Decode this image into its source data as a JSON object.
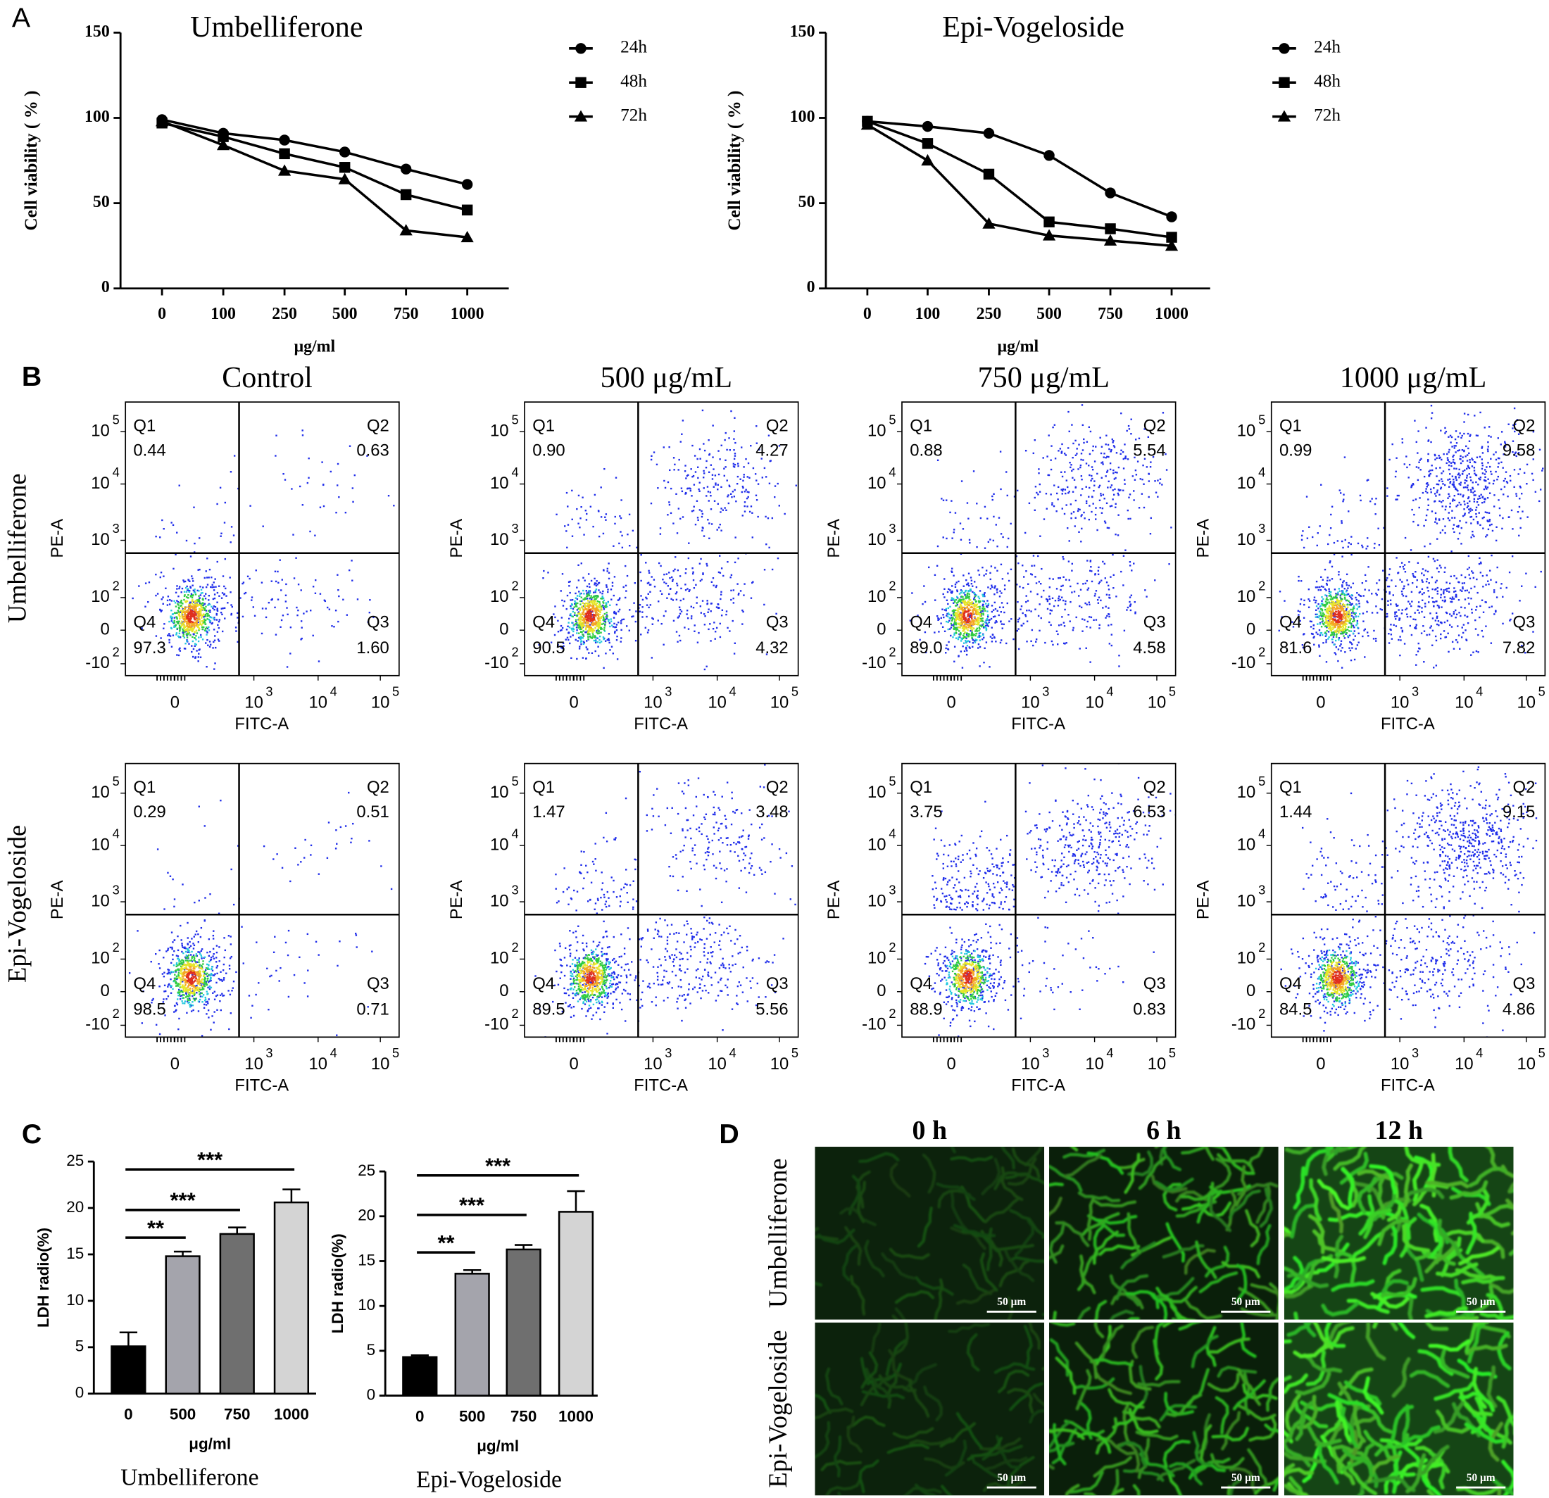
{
  "panel_labels": [
    "A",
    "B",
    "C",
    "D"
  ],
  "chart_data": [
    {
      "type": "line",
      "title": "Umbelliferone",
      "x_label": "μg/ml",
      "y_label": "Cell viability ( %  )",
      "categories": [
        "0",
        "100",
        "250",
        "500",
        "750",
        "1000"
      ],
      "ylim": [
        0,
        150
      ],
      "yticks": [
        0,
        50,
        100,
        150
      ],
      "series": [
        {
          "name": "24h",
          "color": "#000000",
          "marker": "circle",
          "values": [
            99,
            91,
            87,
            80,
            70,
            61
          ]
        },
        {
          "name": "48h",
          "color": "#000000",
          "marker": "square",
          "values": [
            97,
            89,
            79,
            71,
            55,
            46
          ]
        },
        {
          "name": "72h",
          "color": "#000000",
          "marker": "triangle",
          "values": [
            98,
            84,
            69,
            64,
            34,
            30
          ]
        }
      ]
    },
    {
      "type": "line",
      "title": "Epi-Vogeloside",
      "x_label": "μg/ml",
      "y_label": "Cell viability ( %  )",
      "categories": [
        "0",
        "100",
        "250",
        "500",
        "750",
        "1000"
      ],
      "ylim": [
        0,
        150
      ],
      "yticks": [
        0,
        50,
        100,
        150
      ],
      "series": [
        {
          "name": "24h",
          "color": "#000000",
          "marker": "circle",
          "values": [
            98,
            95,
            91,
            78,
            56,
            42
          ]
        },
        {
          "name": "48h",
          "color": "#000000",
          "marker": "square",
          "values": [
            98,
            85,
            67,
            39,
            35,
            30
          ]
        },
        {
          "name": "72h",
          "color": "#000000",
          "marker": "triangle",
          "values": [
            96,
            75,
            38,
            31,
            28,
            25
          ]
        }
      ]
    },
    {
      "type": "bar",
      "title": "Umbelliferone",
      "x_label": "μg/ml",
      "y_label": "LDH radio(%)",
      "categories": [
        "0",
        "500",
        "750",
        "1000"
      ],
      "values": [
        5.1,
        14.8,
        17.2,
        20.6
      ],
      "errors": [
        1.5,
        0.5,
        0.7,
        1.4
      ],
      "colors": [
        "#000000",
        "#a4a4ac",
        "#6f6f6f",
        "#d4d4d4"
      ],
      "ylim": [
        0,
        25
      ],
      "yticks": [
        0,
        5,
        10,
        15,
        20,
        25
      ],
      "annotations": [
        {
          "text": "**",
          "from": 0,
          "to": 1
        },
        {
          "text": "***",
          "from": 0,
          "to": 2
        },
        {
          "text": "***",
          "from": 0,
          "to": 3
        }
      ]
    },
    {
      "type": "bar",
      "title": "Epi-Vogeloside",
      "x_label": "μg/ml",
      "y_label": "LDH radio(%)",
      "categories": [
        "0",
        "500",
        "750",
        "1000"
      ],
      "values": [
        4.3,
        13.6,
        16.3,
        20.5
      ],
      "errors": [
        0.2,
        0.4,
        0.5,
        2.3
      ],
      "colors": [
        "#000000",
        "#a4a4ac",
        "#6f6f6f",
        "#d4d4d4"
      ],
      "ylim": [
        0,
        25
      ],
      "yticks": [
        0,
        5,
        10,
        15,
        20,
        25
      ],
      "annotations": [
        {
          "text": "**",
          "from": 0,
          "to": 1
        },
        {
          "text": "***",
          "from": 0,
          "to": 2
        },
        {
          "text": "***",
          "from": 0,
          "to": 3
        }
      ]
    }
  ],
  "flow": {
    "column_titles": [
      "Control",
      "500 μg/mL",
      "750 μg/mL",
      "1000 μg/mL"
    ],
    "row_labels": [
      "Umbelliferone",
      "Epi-Vogeloside"
    ],
    "x_label": "FITC-A",
    "y_label": "PE-A",
    "quadrant_names": [
      "Q1",
      "Q2",
      "Q3",
      "Q4"
    ],
    "y_tick_labels": [
      {
        "base": "10",
        "exp": "5"
      },
      {
        "base": "10",
        "exp": "4"
      },
      {
        "base": "10",
        "exp": "3"
      },
      {
        "base": "10",
        "exp": "2"
      },
      {
        "base": "0"
      },
      {
        "base": "-10",
        "exp": "2"
      }
    ],
    "x_tick_labels": [
      {
        "base": "0"
      },
      {
        "base": "10",
        "exp": "3"
      },
      {
        "base": "10",
        "exp": "4"
      },
      {
        "base": "10",
        "exp": "5"
      }
    ],
    "plots": [
      [
        {
          "Q1": "0.44",
          "Q2": "0.63",
          "Q3": "1.60",
          "Q4": "97.3"
        },
        {
          "Q1": "0.90",
          "Q2": "4.27",
          "Q3": "4.32",
          "Q4": "90.5"
        },
        {
          "Q1": "0.88",
          "Q2": "5.54",
          "Q3": "4.58",
          "Q4": "89.0"
        },
        {
          "Q1": "0.99",
          "Q2": "9.58",
          "Q3": "7.82",
          "Q4": "81.6"
        }
      ],
      [
        {
          "Q1": "0.29",
          "Q2": "0.51",
          "Q3": "0.71",
          "Q4": "98.5"
        },
        {
          "Q1": "1.47",
          "Q2": "3.48",
          "Q3": "5.56",
          "Q4": "89.5"
        },
        {
          "Q1": "3.75",
          "Q2": "6.53",
          "Q3": "0.83",
          "Q4": "88.9"
        },
        {
          "Q1": "1.44",
          "Q2": "9.15",
          "Q3": "4.86",
          "Q4": "84.5"
        }
      ]
    ]
  },
  "microscopy": {
    "column_titles": [
      "0 h",
      "6 h",
      "12 h"
    ],
    "row_labels": [
      "Umbelliferone",
      "Epi-Vogeloside"
    ],
    "scale_bar": "50 μm"
  }
}
